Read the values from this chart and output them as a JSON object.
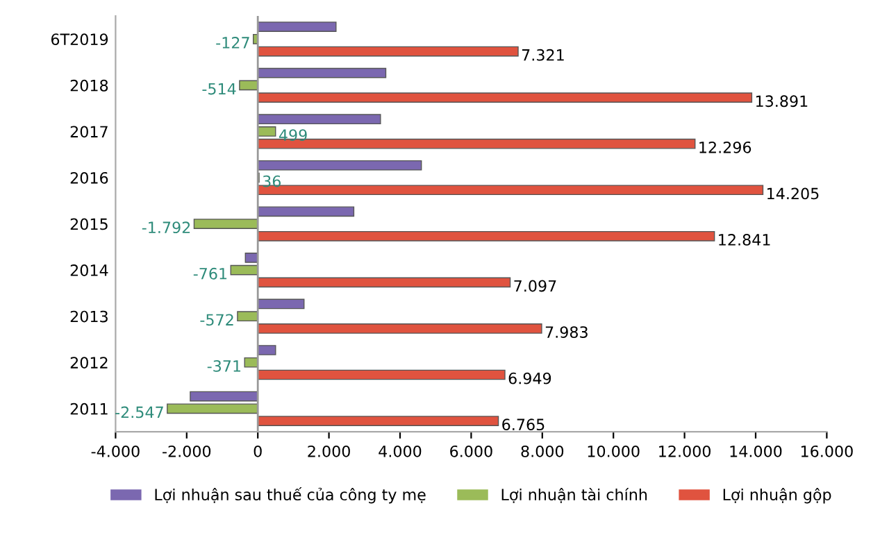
{
  "chart_data": {
    "type": "bar",
    "orientation": "horizontal",
    "categories": [
      "6T2019",
      "2018",
      "2017",
      "2016",
      "2015",
      "2014",
      "2013",
      "2012",
      "2011"
    ],
    "series": [
      {
        "name": "Lợi nhuận sau thuế của công ty mẹ",
        "color": "#7b68b0",
        "values": [
          2200,
          3600,
          3450,
          4600,
          2700,
          -350,
          1300,
          500,
          -1900
        ]
      },
      {
        "name": "Lợi nhuận tài chính",
        "color": "#9bbb59",
        "values": [
          -127,
          -514,
          499,
          36,
          -1792,
          -761,
          -572,
          -371,
          -2547
        ],
        "value_labels": [
          "-127",
          "-514",
          "499",
          "36",
          "-1.792",
          "-761",
          "-572",
          "-371",
          "-2.547"
        ]
      },
      {
        "name": "Lợi nhuận gộp",
        "color": "#e0533f",
        "values": [
          7321,
          13891,
          12296,
          14205,
          12841,
          7097,
          7983,
          6949,
          6765
        ],
        "value_labels": [
          "7.321",
          "13.891",
          "12.296",
          "14.205",
          "12.841",
          "7.097",
          "7.983",
          "6.949",
          "6.765"
        ]
      }
    ],
    "xlim": [
      -4000,
      16000
    ],
    "xticks": [
      {
        "value": -4000,
        "label": "-4.000"
      },
      {
        "value": -2000,
        "label": "-2.000"
      },
      0,
      {
        "value": 2000,
        "label": "2.000"
      },
      {
        "value": 4000,
        "label": "4.000"
      },
      {
        "value": 6000,
        "label": "6.000"
      },
      {
        "value": 8000,
        "label": "8.000"
      },
      {
        "value": 10000,
        "label": "10.000"
      },
      {
        "value": 12000,
        "label": "12.000"
      },
      {
        "value": 14000,
        "label": "14.000"
      },
      {
        "value": 16000,
        "label": "16.000"
      }
    ],
    "ref_lines": [
      {
        "axis": "x",
        "value": 0,
        "color": "#999999"
      }
    ],
    "legend": "bottom"
  }
}
